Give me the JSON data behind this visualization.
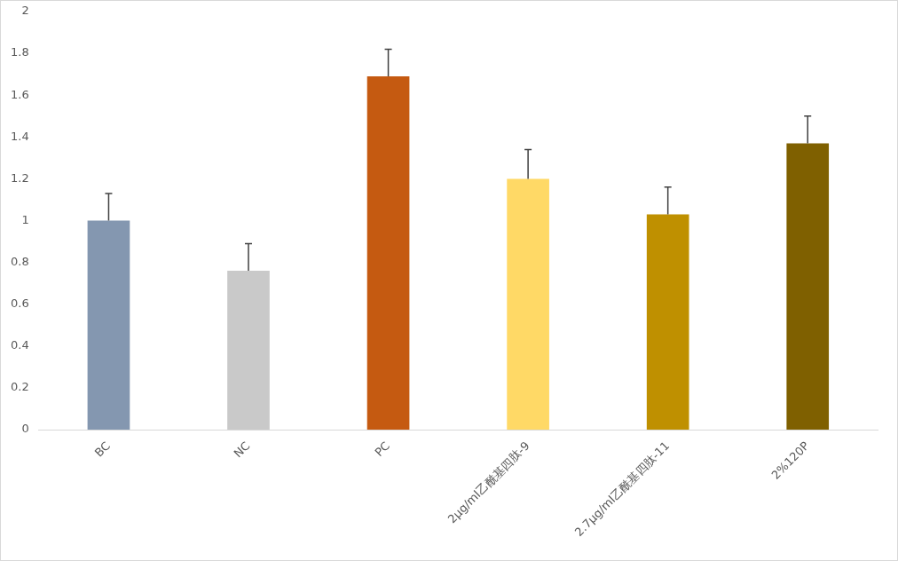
{
  "chart_data": {
    "type": "bar",
    "categories": [
      "BC",
      "NC",
      "PC",
      "2μg/ml乙酰基四肽-9",
      "2.7μg/ml乙酰基四肽-11",
      "2%120P"
    ],
    "values": [
      1.0,
      0.76,
      1.69,
      1.2,
      1.03,
      1.37
    ],
    "colors": [
      "#8497b0",
      "#c9c9c9",
      "#c55a11",
      "#ffd966",
      "#bf9000",
      "#7f6000"
    ],
    "errors": [
      [
        1.0,
        1.13
      ],
      [
        0.76,
        0.89
      ],
      [
        1.69,
        1.82
      ],
      [
        1.2,
        1.34
      ],
      [
        1.03,
        1.16
      ],
      [
        1.37,
        1.5
      ]
    ],
    "ylim": [
      0,
      2
    ],
    "yticks": [
      0,
      0.2,
      0.4,
      0.6,
      0.8,
      1,
      1.2,
      1.4,
      1.6,
      1.8,
      2
    ],
    "grid": false,
    "legend": false
  }
}
